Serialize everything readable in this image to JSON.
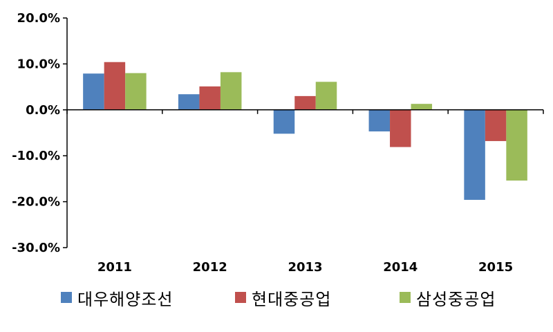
{
  "chart_data": {
    "type": "bar",
    "categories": [
      "2011",
      "2012",
      "2013",
      "2014",
      "2015"
    ],
    "series": [
      {
        "name": "대우해양조선",
        "color": "#4f81bd",
        "values": [
          7.9,
          3.4,
          -5.2,
          -4.7,
          -19.6
        ]
      },
      {
        "name": "현대중공업",
        "color": "#c0504d",
        "values": [
          10.4,
          5.1,
          3.0,
          -8.1,
          -6.8
        ]
      },
      {
        "name": "삼성중공업",
        "color": "#9bbb59",
        "values": [
          8.0,
          8.2,
          6.1,
          1.3,
          -15.4
        ]
      }
    ],
    "ylim": [
      -30,
      20
    ],
    "yticks": [
      20,
      10,
      0,
      -10,
      -20,
      -30
    ],
    "ytick_labels": [
      "20.0%",
      "10.0%",
      "0.0%",
      "-10.0%",
      "-20.0%",
      "-30.0%"
    ],
    "legend_position": "bottom",
    "grid": false
  }
}
